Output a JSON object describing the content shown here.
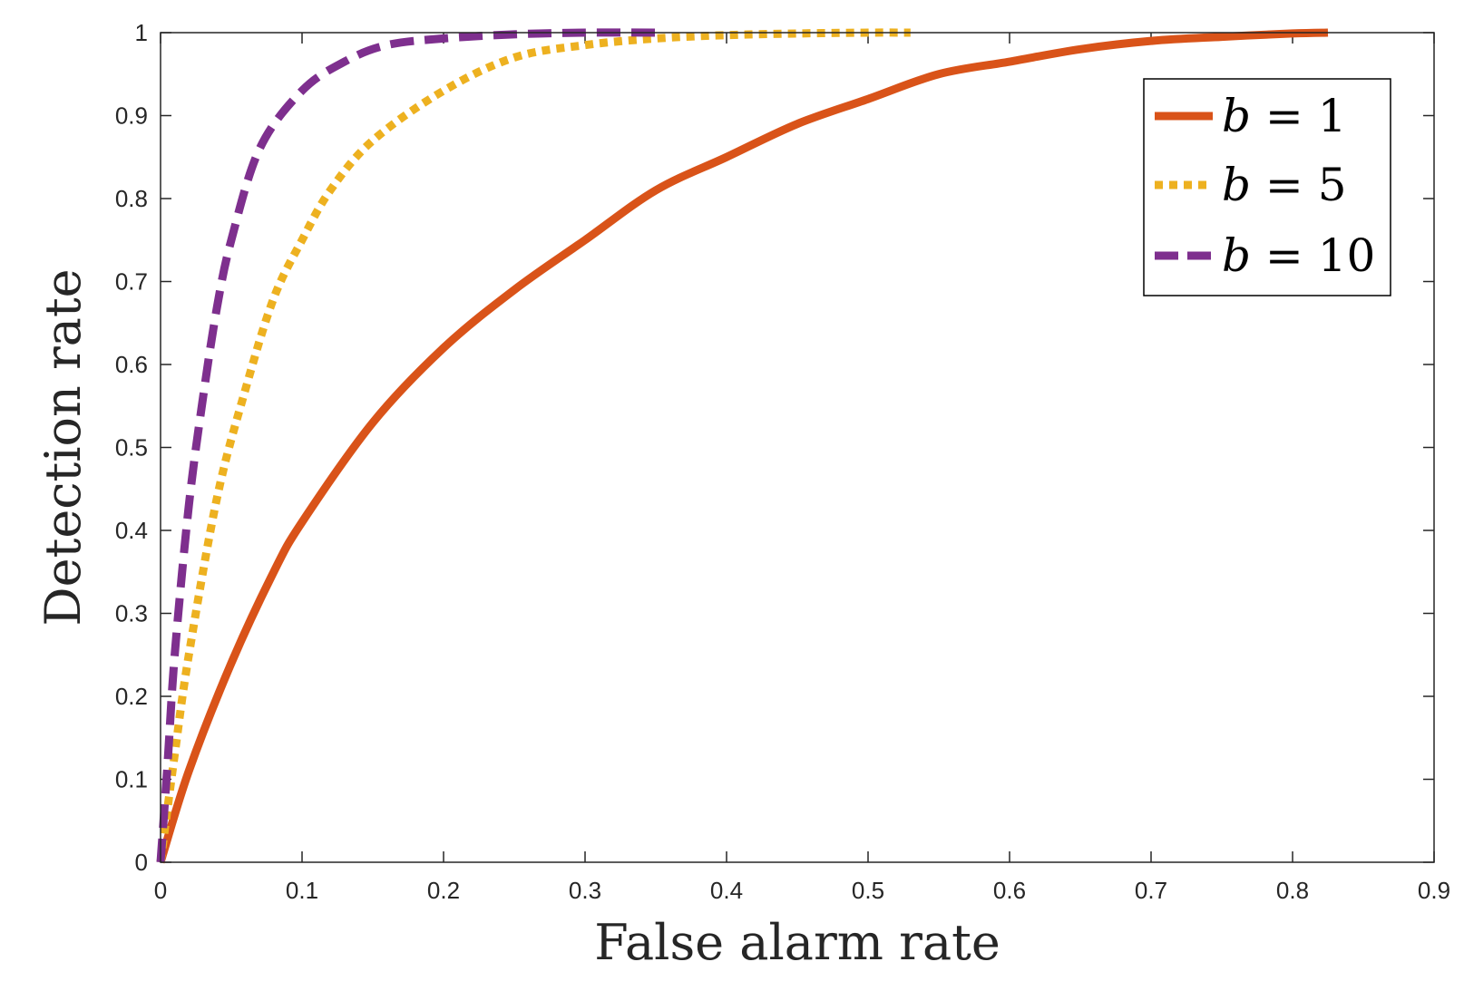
{
  "chart_data": {
    "type": "line",
    "xlabel": "False alarm rate",
    "ylabel": "Detection rate",
    "xlim": [
      0,
      0.9
    ],
    "ylim": [
      0,
      1
    ],
    "xticks": [
      "0",
      "0.1",
      "0.2",
      "0.3",
      "0.4",
      "0.5",
      "0.6",
      "0.7",
      "0.8",
      "0.9"
    ],
    "yticks": [
      "0",
      "0.1",
      "0.2",
      "0.3",
      "0.4",
      "0.5",
      "0.6",
      "0.7",
      "0.8",
      "0.9",
      "1"
    ],
    "grid": false,
    "legend_position": "top-right",
    "series": [
      {
        "name": "b = 1",
        "legend_var": "b",
        "legend_rest": " = 1",
        "color": "#D95319",
        "style": "solid",
        "x": [
          0,
          0.02,
          0.05,
          0.08,
          0.1,
          0.15,
          0.2,
          0.25,
          0.3,
          0.35,
          0.4,
          0.45,
          0.5,
          0.55,
          0.6,
          0.65,
          0.7,
          0.75,
          0.8,
          0.825
        ],
        "y": [
          0,
          0.11,
          0.24,
          0.35,
          0.41,
          0.53,
          0.62,
          0.69,
          0.75,
          0.81,
          0.85,
          0.89,
          0.92,
          0.95,
          0.965,
          0.98,
          0.99,
          0.995,
          0.999,
          1.0
        ]
      },
      {
        "name": "b = 5",
        "legend_var": "b",
        "legend_rest": " = 5",
        "color": "#EDB120",
        "style": "dotted",
        "x": [
          0,
          0.01,
          0.02,
          0.04,
          0.06,
          0.08,
          0.1,
          0.12,
          0.15,
          0.2,
          0.25,
          0.3,
          0.35,
          0.4,
          0.45,
          0.5,
          0.53
        ],
        "y": [
          0,
          0.13,
          0.25,
          0.44,
          0.57,
          0.68,
          0.75,
          0.81,
          0.87,
          0.93,
          0.97,
          0.985,
          0.993,
          0.997,
          0.999,
          1.0,
          1.0
        ]
      },
      {
        "name": "b = 10",
        "legend_var": "b",
        "legend_rest": " = 10",
        "color": "#7E2F8E",
        "style": "dashed",
        "x": [
          0,
          0.005,
          0.01,
          0.02,
          0.03,
          0.04,
          0.05,
          0.07,
          0.1,
          0.13,
          0.16,
          0.2,
          0.25,
          0.3,
          0.355
        ],
        "y": [
          0,
          0.12,
          0.25,
          0.43,
          0.56,
          0.67,
          0.75,
          0.86,
          0.93,
          0.965,
          0.985,
          0.993,
          0.998,
          1.0,
          1.0
        ]
      }
    ]
  }
}
